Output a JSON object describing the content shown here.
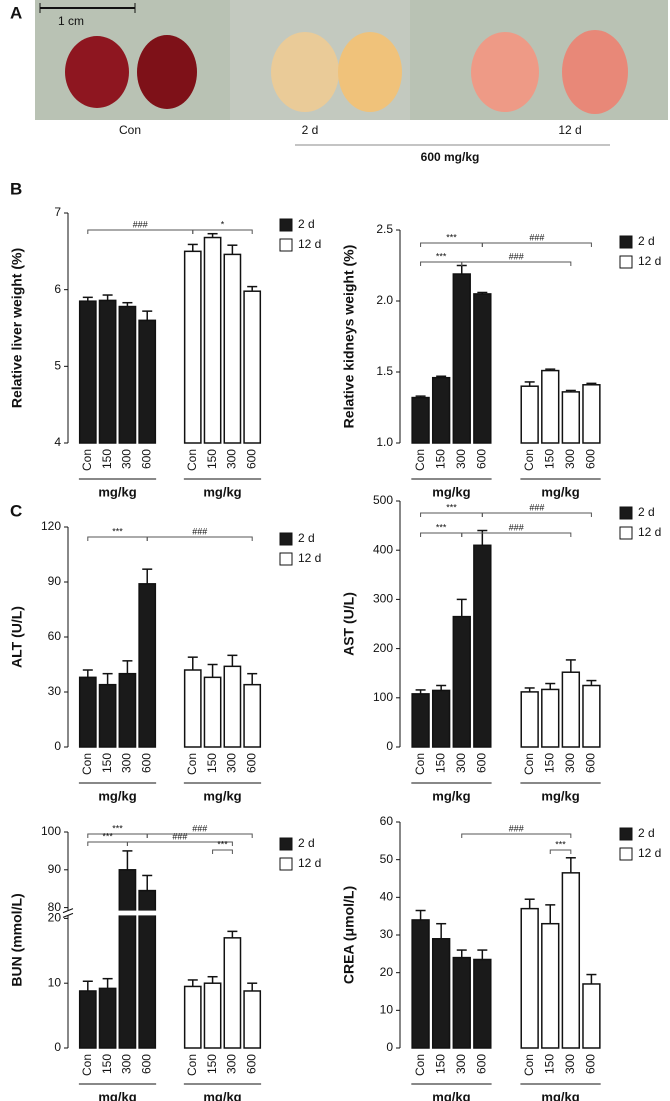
{
  "panel_labels": [
    "A",
    "B",
    "C"
  ],
  "panel_a": {
    "scale_bar": "1 cm",
    "groups": [
      "Con",
      "2 d",
      "12 d"
    ],
    "dose": "600 mg/kg"
  },
  "chart_data": [
    {
      "type": "bar",
      "y_label": "Relative liver weight (%)",
      "categories": [
        "Con",
        "150",
        "300",
        "600",
        "Con",
        "150",
        "300",
        "600"
      ],
      "group_labels": [
        "mg/kg",
        "mg/kg"
      ],
      "series": [
        {
          "name": "2 d",
          "color": "#1a1a1a",
          "values": [
            5.85,
            5.86,
            5.78,
            5.6,
            null,
            null,
            null,
            null
          ],
          "errors": [
            0.05,
            0.07,
            0.05,
            0.12,
            null,
            null,
            null,
            null
          ]
        },
        {
          "name": "12 d",
          "color": "#ffffff",
          "values": [
            null,
            null,
            null,
            null,
            6.5,
            6.68,
            6.46,
            5.98
          ],
          "errors": [
            null,
            null,
            null,
            null,
            0.09,
            0.05,
            0.12,
            0.06
          ]
        }
      ],
      "ylim": [
        4,
        7
      ],
      "yticks": [
        4,
        5,
        6,
        7
      ],
      "annotations": [
        "###",
        "*"
      ]
    },
    {
      "type": "bar",
      "y_label": "Relative kidneys weight (%)",
      "categories": [
        "Con",
        "150",
        "300",
        "600",
        "Con",
        "150",
        "300",
        "600"
      ],
      "group_labels": [
        "mg/kg",
        "mg/kg"
      ],
      "series": [
        {
          "name": "2 d",
          "color": "#1a1a1a",
          "values": [
            1.32,
            1.46,
            2.19,
            2.05,
            null,
            null,
            null,
            null
          ],
          "errors": [
            0.01,
            0.01,
            0.06,
            0.01,
            null,
            null,
            null,
            null
          ]
        },
        {
          "name": "12 d",
          "color": "#ffffff",
          "values": [
            null,
            null,
            null,
            null,
            1.4,
            1.51,
            1.36,
            1.41
          ],
          "errors": [
            null,
            null,
            null,
            null,
            0.03,
            0.01,
            0.01,
            0.01
          ]
        }
      ],
      "ylim": [
        1,
        2.5
      ],
      "yticks": [
        {
          "value": 1,
          "label": "1.0"
        },
        1.5,
        {
          "value": 2,
          "label": "2.0"
        },
        2.5
      ],
      "annotations": [
        "***",
        "***",
        "###",
        "###"
      ]
    },
    {
      "type": "bar",
      "y_label": "ALT (U/L)",
      "categories": [
        "Con",
        "150",
        "300",
        "600",
        "Con",
        "150",
        "300",
        "600"
      ],
      "group_labels": [
        "mg/kg",
        "mg/kg"
      ],
      "series": [
        {
          "name": "2 d",
          "color": "#1a1a1a",
          "values": [
            38,
            34,
            40,
            89,
            null,
            null,
            null,
            null
          ],
          "errors": [
            4,
            6,
            7,
            8,
            null,
            null,
            null,
            null
          ]
        },
        {
          "name": "12 d",
          "color": "#ffffff",
          "values": [
            null,
            null,
            null,
            null,
            42,
            38,
            44,
            34
          ],
          "errors": [
            null,
            null,
            null,
            null,
            7,
            7,
            6,
            6
          ]
        }
      ],
      "ylim": [
        0,
        120
      ],
      "yticks": [
        0,
        30,
        60,
        90,
        120
      ],
      "annotations": [
        "***",
        "###"
      ]
    },
    {
      "type": "bar",
      "y_label": "AST (U/L)",
      "categories": [
        "Con",
        "150",
        "300",
        "600",
        "Con",
        "150",
        "300",
        "600"
      ],
      "group_labels": [
        "mg/kg",
        "mg/kg"
      ],
      "series": [
        {
          "name": "2 d",
          "color": "#1a1a1a",
          "values": [
            108,
            115,
            265,
            410,
            null,
            null,
            null,
            null
          ],
          "errors": [
            8,
            10,
            35,
            30,
            null,
            null,
            null,
            null
          ]
        },
        {
          "name": "12 d",
          "color": "#ffffff",
          "values": [
            null,
            null,
            null,
            null,
            112,
            117,
            152,
            125
          ],
          "errors": [
            null,
            null,
            null,
            null,
            8,
            12,
            25,
            10
          ]
        }
      ],
      "ylim": [
        0,
        500
      ],
      "yticks": [
        0,
        100,
        200,
        300,
        400,
        500
      ],
      "annotations": [
        "***",
        "***",
        "###",
        "###"
      ]
    },
    {
      "type": "bar",
      "y_label": "BUN (mmol/L)",
      "categories": [
        "Con",
        "150",
        "300",
        "600",
        "Con",
        "150",
        "300",
        "600"
      ],
      "group_labels": [
        "mg/kg",
        "mg/kg"
      ],
      "series": [
        {
          "name": "2 d",
          "color": "#1a1a1a",
          "values": [
            8.8,
            9.2,
            90,
            84.5,
            null,
            null,
            null,
            null
          ],
          "errors": [
            1.5,
            1.5,
            5,
            4,
            null,
            null,
            null,
            null
          ]
        },
        {
          "name": "12 d",
          "color": "#ffffff",
          "values": [
            null,
            null,
            null,
            null,
            9.5,
            10,
            17,
            8.8
          ],
          "errors": [
            null,
            null,
            null,
            null,
            1,
            1,
            1,
            1.2
          ]
        }
      ],
      "ylim": [
        0,
        100
      ],
      "ybreak": [
        20,
        80
      ],
      "yticks": [
        0,
        10,
        20,
        80,
        90,
        100
      ],
      "annotations": [
        "***",
        "***",
        "###",
        "###",
        "***"
      ]
    },
    {
      "type": "bar",
      "y_label": "CREA (μmol/L)",
      "categories": [
        "Con",
        "150",
        "300",
        "600",
        "Con",
        "150",
        "300",
        "600"
      ],
      "group_labels": [
        "mg/kg",
        "mg/kg"
      ],
      "series": [
        {
          "name": "2 d",
          "color": "#1a1a1a",
          "values": [
            34,
            29,
            24,
            23.5,
            null,
            null,
            null,
            null
          ],
          "errors": [
            2.5,
            4,
            2,
            2.5,
            null,
            null,
            null,
            null
          ]
        },
        {
          "name": "12 d",
          "color": "#ffffff",
          "values": [
            null,
            null,
            null,
            null,
            37,
            33,
            46.5,
            17
          ],
          "errors": [
            null,
            null,
            null,
            null,
            2.5,
            5,
            4,
            2.5
          ]
        }
      ],
      "ylim": [
        0,
        60
      ],
      "yticks": [
        0,
        10,
        20,
        30,
        40,
        50,
        60
      ],
      "annotations": [
        "###",
        "***"
      ]
    }
  ]
}
